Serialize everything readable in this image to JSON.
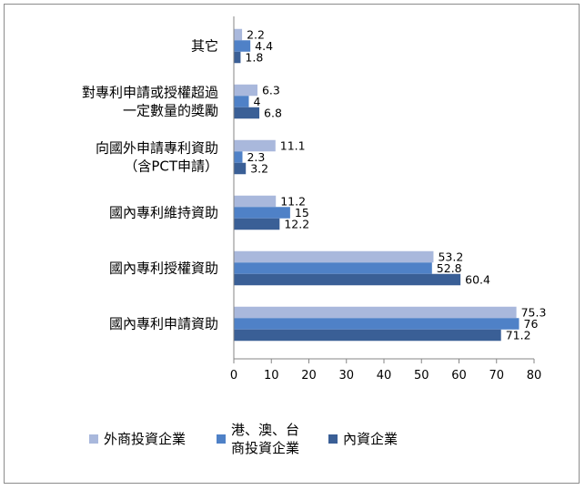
{
  "chart_data": {
    "type": "bar",
    "orientation": "horizontal",
    "title": "",
    "xlabel": "",
    "ylabel": "",
    "xlim": [
      0,
      80
    ],
    "xticks": [
      0,
      10,
      20,
      30,
      40,
      50,
      60,
      70,
      80
    ],
    "grid": false,
    "legend_position": "bottom",
    "categories": [
      [
        "其它"
      ],
      [
        "對專利申請或授權超過",
        "一定數量的獎勵"
      ],
      [
        "向國外申請專利資助",
        "（含PCT申請）"
      ],
      [
        "國內專利維持資助"
      ],
      [
        "國內專利授權資助"
      ],
      [
        "國內專利申請資助"
      ]
    ],
    "series": [
      {
        "name": [
          "外商投資企業"
        ],
        "color": "#a9b8dc",
        "values": [
          2.2,
          6.3,
          11.1,
          11.2,
          53.2,
          75.3
        ]
      },
      {
        "name": [
          "港、澳、台",
          "商投資企業"
        ],
        "color": "#4f81c7",
        "values": [
          4.4,
          4,
          2.3,
          15,
          52.8,
          76
        ]
      },
      {
        "name": [
          "內資企業"
        ],
        "color": "#3a5f96",
        "values": [
          1.8,
          6.8,
          3.2,
          12.2,
          60.4,
          71.2
        ]
      }
    ]
  }
}
